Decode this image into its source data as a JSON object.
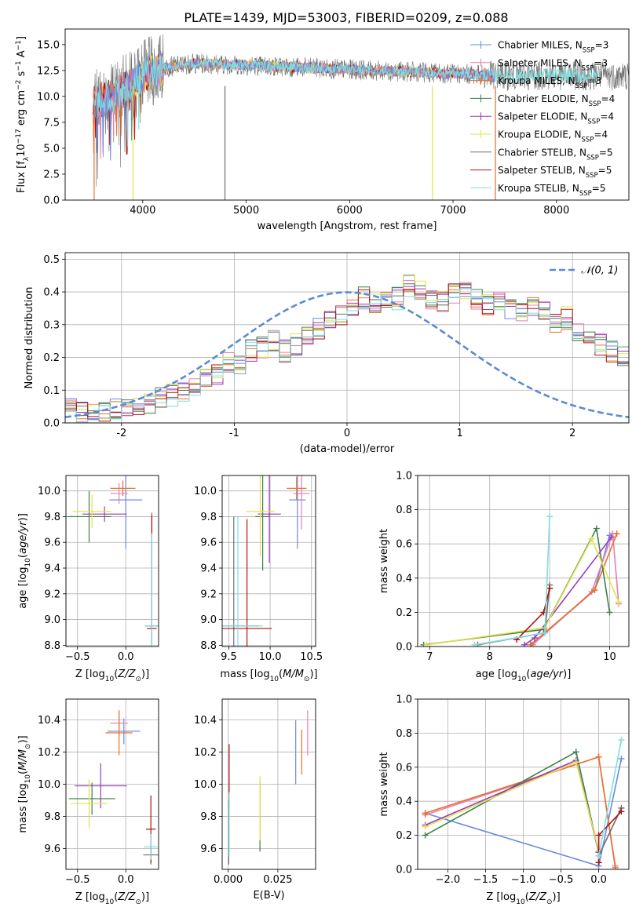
{
  "title": "PLATE=1439, MJD=53003, FIBERID=0209, z=0.088",
  "colors": {
    "chabrier_miles": "#6a8be0",
    "salpeter_miles": "#e67fb0",
    "kroupa_miles": "#e8702a",
    "chabrier_elodie": "#3f7f4a",
    "salpeter_elodie": "#9a3bbd",
    "kroupa_elodie": "#e3e34a",
    "chabrier_stelib": "#6f6f6f",
    "salpeter_stelib": "#b01010",
    "kroupa_stelib": "#7fdede",
    "normal_curve": "#5b8bd0",
    "grid": "#b0b0b0"
  },
  "chart_data": [
    {
      "id": "spectrum",
      "type": "line",
      "xlabel": "wavelength [Angstrom, rest frame]",
      "ylabel": "Flux [f_λ10^-17 erg cm^-2 s^-1 A^-1]",
      "xlim": [
        3250,
        8700
      ],
      "ylim": [
        0,
        16.5
      ],
      "xticks": [
        4000,
        5000,
        6000,
        7000,
        8000
      ],
      "yticks": [
        0.0,
        2.5,
        5.0,
        7.5,
        10.0,
        12.5,
        15.0
      ],
      "legend_position": "top-right",
      "legend": [
        {
          "label": "Chabrier MILES, N",
          "sub": "SSP",
          "tail": "=3"
        },
        {
          "label": "Salpeter MILES, N",
          "sub": "SSP",
          "tail": "=3"
        },
        {
          "label": "Kroupa MILES, N",
          "sub": "SSP",
          "tail": "=3"
        },
        {
          "label": "Chabrier ELODIE, N",
          "sub": "SSP",
          "tail": "=4"
        },
        {
          "label": "Salpeter ELODIE, N",
          "sub": "SSP",
          "tail": "=4"
        },
        {
          "label": "Kroupa ELODIE, N",
          "sub": "SSP",
          "tail": "=4"
        },
        {
          "label": "Chabrier STELIB, N",
          "sub": "SSP",
          "tail": "=5"
        },
        {
          "label": "Salpeter STELIB, N",
          "sub": "SSP",
          "tail": "=5"
        },
        {
          "label": "Kroupa STELIB, N",
          "sub": "SSP",
          "tail": "=5"
        }
      ],
      "continuum": {
        "x": [
          3500,
          3700,
          3900,
          4000,
          4200,
          4500,
          5000,
          5500,
          6000,
          6500,
          7000,
          7500,
          8000,
          8300
        ],
        "y": [
          9.5,
          10.0,
          11.0,
          12.0,
          12.8,
          13.2,
          13.0,
          12.8,
          12.6,
          12.4,
          12.2,
          12.0,
          12.0,
          12.0
        ]
      }
    },
    {
      "id": "residuals",
      "type": "histogram",
      "xlabel": "(data-model)/error",
      "ylabel": "Normed distribution",
      "xlim": [
        -2.5,
        2.5
      ],
      "ylim": [
        0,
        0.52
      ],
      "xticks": [
        -2,
        -1,
        0,
        1,
        2
      ],
      "yticks": [
        0.0,
        0.1,
        0.2,
        0.3,
        0.4,
        0.5
      ],
      "legend_label": "𝒩(0, 1)",
      "legend_position": "top-right",
      "bin_width": 0.1,
      "reference": [
        0.044,
        0.032,
        0.034,
        0.038,
        0.045,
        0.055,
        0.05,
        0.062,
        0.075,
        0.085,
        0.1,
        0.115,
        0.13,
        0.15,
        0.19,
        0.18,
        0.22,
        0.23,
        0.25,
        0.22,
        0.24,
        0.27,
        0.29,
        0.31,
        0.33,
        0.35,
        0.38,
        0.36,
        0.37,
        0.38,
        0.42,
        0.4,
        0.38,
        0.37,
        0.39,
        0.41,
        0.38,
        0.36,
        0.37,
        0.35,
        0.33,
        0.35,
        0.34,
        0.3,
        0.32,
        0.27,
        0.25,
        0.24,
        0.22,
        0.21,
        0.2,
        0.18,
        0.17,
        0.15,
        0.13,
        0.12,
        0.1,
        0.1,
        0.085,
        0.075,
        0.065,
        0.055,
        0.05,
        0.04,
        0.038,
        0.032,
        0.03,
        0.026,
        0.03,
        0.025
      ]
    },
    {
      "id": "age_vs_Z",
      "type": "errorbar",
      "xlabel": "Z [log10(Z/Z⊙)]",
      "ylabel": "age  [log10(age/yr)]",
      "xlim": [
        -0.62,
        0.34
      ],
      "ylim": [
        8.79,
        10.12
      ],
      "xticks": [
        -0.5,
        0.0
      ],
      "xtick_labels": [
        "−0.5",
        "0.0"
      ],
      "yticks": [
        8.8,
        9.0,
        9.2,
        9.4,
        9.6,
        9.8,
        10.0
      ],
      "points": [
        {
          "c": "chabrier_miles",
          "x": 0.0,
          "xe": 0.17,
          "y": 9.93,
          "ye": 0.38
        },
        {
          "c": "salpeter_miles",
          "x": -0.07,
          "xe": 0.09,
          "y": 9.98,
          "ye": 0.08
        },
        {
          "c": "kroupa_miles",
          "x": -0.03,
          "xe": 0.13,
          "y": 10.02,
          "ye": 0.06
        },
        {
          "c": "chabrier_elodie",
          "x": -0.38,
          "xe": 0.23,
          "y": 9.8,
          "ye": 0.2
        },
        {
          "c": "salpeter_elodie",
          "x": -0.22,
          "xe": 0.23,
          "y": 9.82,
          "ye": 0.06
        },
        {
          "c": "kroupa_elodie",
          "x": -0.35,
          "xe": 0.2,
          "y": 9.84,
          "ye": 0.13
        },
        {
          "c": "chabrier_stelib",
          "x": 0.27,
          "xe": 0.07,
          "y": 8.95,
          "ye": 0.88
        },
        {
          "c": "salpeter_stelib",
          "x": 0.27,
          "xe": 0.05,
          "y": 8.93,
          "ye": 0.88
        },
        {
          "c": "kroupa_stelib",
          "x": 0.27,
          "xe": 0.07,
          "y": 8.95,
          "ye": 0.72
        }
      ]
    },
    {
      "id": "age_vs_mass",
      "type": "errorbar",
      "xlabel": "mass [log10(M/M⊙)]",
      "xlim": [
        9.42,
        10.55
      ],
      "ylim": [
        8.79,
        10.12
      ],
      "xticks": [
        9.5,
        10.0,
        10.5
      ],
      "yticks": [
        8.8,
        9.0,
        9.2,
        9.4,
        9.6,
        9.8,
        10.0
      ],
      "points": [
        {
          "c": "chabrier_miles",
          "x": 10.33,
          "xe": 0.1,
          "y": 9.93,
          "ye": 0.38
        },
        {
          "c": "salpeter_miles",
          "x": 10.38,
          "xe": 0.1,
          "y": 9.98,
          "ye": 0.28
        },
        {
          "c": "kroupa_miles",
          "x": 10.32,
          "xe": 0.12,
          "y": 10.02,
          "ye": 0.09
        },
        {
          "c": "chabrier_elodie",
          "x": 9.91,
          "xe": 0.09,
          "y": 9.8,
          "ye": 0.42
        },
        {
          "c": "salpeter_elodie",
          "x": 9.99,
          "xe": 0.14,
          "y": 9.82,
          "ye": 0.38
        },
        {
          "c": "kroupa_elodie",
          "x": 9.88,
          "xe": 0.17,
          "y": 9.84,
          "ye": 0.35
        },
        {
          "c": "chabrier_stelib",
          "x": 9.56,
          "xe": 0.3,
          "y": 8.95,
          "ye": 0.85
        },
        {
          "c": "salpeter_stelib",
          "x": 9.72,
          "xe": 0.3,
          "y": 8.93,
          "ye": 0.85
        },
        {
          "c": "kroupa_stelib",
          "x": 9.61,
          "xe": 0.3,
          "y": 8.95,
          "ye": 0.85
        }
      ]
    },
    {
      "id": "weight_vs_age",
      "type": "line",
      "xlabel": "age  [log10(age/yr)]",
      "ylabel": "mass weight",
      "xlim": [
        6.8,
        10.32
      ],
      "ylim": [
        0,
        1.0
      ],
      "xticks": [
        7,
        8,
        9,
        10
      ],
      "yticks": [
        0.0,
        0.2,
        0.4,
        0.6,
        0.8,
        1.0
      ],
      "series": [
        {
          "c": "chabrier_miles",
          "x": [
            8.7,
            9.75,
            10.0
          ],
          "y": [
            0.01,
            0.33,
            0.65
          ]
        },
        {
          "c": "salpeter_miles",
          "x": [
            8.72,
            9.7,
            10.05,
            10.15
          ],
          "y": [
            0.01,
            0.32,
            0.66,
            0.25
          ]
        },
        {
          "c": "kroupa_miles",
          "x": [
            8.68,
            9.75,
            10.12
          ],
          "y": [
            0.01,
            0.33,
            0.66
          ]
        },
        {
          "c": "chabrier_elodie",
          "x": [
            6.9,
            8.9,
            9.78,
            10.0
          ],
          "y": [
            0.01,
            0.1,
            0.69,
            0.2
          ]
        },
        {
          "c": "salpeter_elodie",
          "x": [
            8.58,
            8.75,
            10.03
          ],
          "y": [
            0.01,
            0.05,
            0.64
          ]
        },
        {
          "c": "kroupa_elodie",
          "x": [
            6.95,
            8.92,
            9.7,
            10.15
          ],
          "y": [
            0.01,
            0.11,
            0.63,
            0.26
          ]
        },
        {
          "c": "chabrier_stelib",
          "x": [
            7.8,
            8.92,
            9.0
          ],
          "y": [
            0.01,
            0.08,
            0.36
          ]
        },
        {
          "c": "salpeter_stelib",
          "x": [
            8.45,
            8.9,
            9.0
          ],
          "y": [
            0.04,
            0.2,
            0.34
          ]
        },
        {
          "c": "kroupa_stelib",
          "x": [
            7.75,
            8.92,
            9.0
          ],
          "y": [
            0.01,
            0.08,
            0.76
          ]
        }
      ]
    },
    {
      "id": "mass_vs_Z",
      "type": "errorbar",
      "xlabel": "Z [log10(Z/Z⊙)]",
      "ylabel": "mass [log10(M/M⊙)]",
      "xlim": [
        -0.62,
        0.34
      ],
      "ylim": [
        9.47,
        10.53
      ],
      "xticks": [
        -0.5,
        0.0
      ],
      "xtick_labels": [
        "−0.5",
        "0.0"
      ],
      "yticks": [
        9.6,
        9.8,
        10.0,
        10.2,
        10.4
      ],
      "points": [
        {
          "c": "chabrier_miles",
          "x": -0.02,
          "xe": 0.17,
          "y": 10.33,
          "ye": 0.08
        },
        {
          "c": "salpeter_miles",
          "x": -0.07,
          "xe": 0.09,
          "y": 10.38,
          "ye": 0.08
        },
        {
          "c": "kroupa_miles",
          "x": -0.07,
          "xe": 0.14,
          "y": 10.32,
          "ye": 0.14
        },
        {
          "c": "chabrier_elodie",
          "x": -0.35,
          "xe": 0.24,
          "y": 9.91,
          "ye": 0.1
        },
        {
          "c": "salpeter_elodie",
          "x": -0.26,
          "xe": 0.27,
          "y": 9.99,
          "ye": 0.14
        },
        {
          "c": "kroupa_elodie",
          "x": -0.38,
          "xe": 0.19,
          "y": 9.88,
          "ye": 0.15
        },
        {
          "c": "chabrier_stelib",
          "x": 0.26,
          "xe": 0.08,
          "y": 9.56,
          "ye": 0.06
        },
        {
          "c": "salpeter_stelib",
          "x": 0.26,
          "xe": 0.05,
          "y": 9.72,
          "ye": 0.21
        },
        {
          "c": "kroupa_stelib",
          "x": 0.26,
          "xe": 0.07,
          "y": 9.61,
          "ye": 0.08
        }
      ]
    },
    {
      "id": "mass_vs_ebv",
      "type": "errorbar",
      "xlabel": "E(B-V)",
      "xlim": [
        -0.003,
        0.044
      ],
      "ylim": [
        9.47,
        10.53
      ],
      "xticks": [
        0.0,
        0.025
      ],
      "xtick_labels": [
        "0.000",
        "0.025"
      ],
      "yticks": [
        9.6,
        9.8,
        10.0,
        10.2,
        10.4
      ],
      "points": [
        {
          "c": "chabrier_miles",
          "x": 0.034,
          "xe": 0,
          "y": 10.2,
          "ye": 0.2
        },
        {
          "c": "kroupa_miles",
          "x": 0.037,
          "xe": 0,
          "y": 10.2,
          "ye": 0.14
        },
        {
          "c": "salpeter_miles",
          "x": 0.04,
          "xe": 0,
          "y": 10.32,
          "ye": 0.14
        },
        {
          "c": "chabrier_elodie",
          "x": 0.016,
          "xe": 0,
          "y": 9.8,
          "ye": 0.22
        },
        {
          "c": "kroupa_elodie",
          "x": 0.016,
          "xe": 0,
          "y": 9.85,
          "ye": 0.2
        },
        {
          "c": "salpeter_stelib",
          "x": 0.0005,
          "xe": 0,
          "y": 10.05,
          "ye": 0.2
        },
        {
          "c": "chabrier_stelib",
          "x": 0.0003,
          "xe": 0,
          "y": 9.7,
          "ye": 0.2
        },
        {
          "c": "kroupa_stelib",
          "x": 0.0005,
          "xe": 0,
          "y": 9.75,
          "ye": 0.2
        }
      ]
    },
    {
      "id": "weight_vs_Z",
      "type": "line",
      "xlabel": "Z [log10(Z/Z⊙)]",
      "ylabel": "mass weight",
      "xlim": [
        -2.4,
        0.4
      ],
      "ylim": [
        0,
        1.0
      ],
      "xticks": [
        -2.0,
        -1.5,
        -1.0,
        -0.5,
        0.0
      ],
      "xtick_labels": [
        "−2.0",
        "−1.5",
        "−1.0",
        "−0.5",
        "0.0"
      ],
      "yticks": [
        0.0,
        0.2,
        0.4,
        0.6,
        0.8,
        1.0
      ],
      "series": [
        {
          "c": "chabrier_miles",
          "x": [
            -2.3,
            0.0,
            0.3
          ],
          "y": [
            0.33,
            0.02,
            0.65
          ]
        },
        {
          "c": "salpeter_miles",
          "x": [
            -2.3,
            0.0,
            0.22
          ],
          "y": [
            0.32,
            0.66,
            0.02
          ]
        },
        {
          "c": "kroupa_miles",
          "x": [
            -2.3,
            0.0,
            0.22
          ],
          "y": [
            0.33,
            0.66,
            0.01
          ]
        },
        {
          "c": "chabrier_elodie",
          "x": [
            -2.3,
            -0.3,
            0.0
          ],
          "y": [
            0.2,
            0.69,
            0.1
          ]
        },
        {
          "c": "salpeter_elodie",
          "x": [
            -2.3,
            -0.3,
            0.0
          ],
          "y": [
            0.26,
            0.64,
            0.1
          ]
        },
        {
          "c": "kroupa_elodie",
          "x": [
            -2.3,
            -0.3,
            0.0
          ],
          "y": [
            0.25,
            0.63,
            0.11
          ]
        },
        {
          "c": "chabrier_stelib",
          "x": [
            0.0,
            0.3
          ],
          "y": [
            0.08,
            0.36
          ]
        },
        {
          "c": "salpeter_stelib",
          "x": [
            0.0,
            0.0,
            0.3
          ],
          "y": [
            0.04,
            0.2,
            0.34
          ]
        },
        {
          "c": "kroupa_stelib",
          "x": [
            0.0,
            0.3
          ],
          "y": [
            0.08,
            0.76
          ]
        }
      ]
    }
  ]
}
